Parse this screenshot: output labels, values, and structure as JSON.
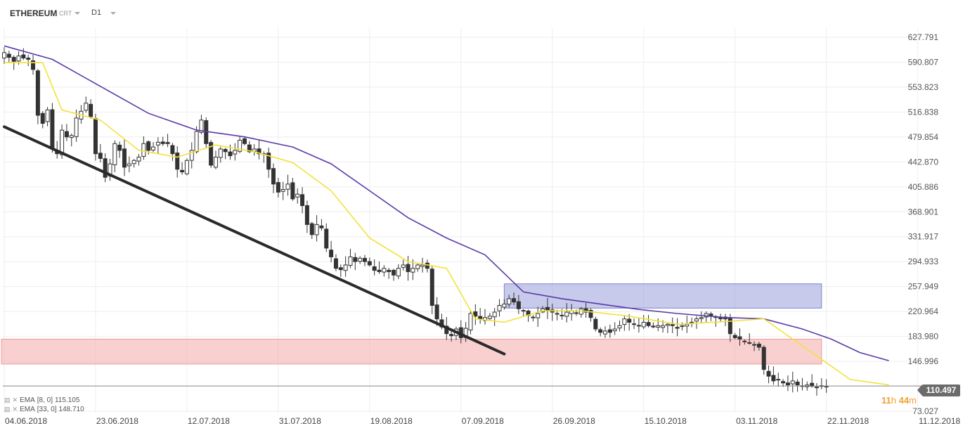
{
  "header": {
    "symbol": "ETHEREUM",
    "chart_type": "CRT",
    "timeframe": "D1"
  },
  "legend": [
    {
      "label": "EMA",
      "params": "[8, 0]",
      "value": "115.105",
      "color": "#f2e23a"
    },
    {
      "label": "EMA",
      "params": "[33, 0]",
      "value": "148.710",
      "color": "#5a3aa8"
    }
  ],
  "current_price": "110.497",
  "countdown": {
    "hours": "11",
    "h": "h",
    "minutes": "44",
    "m": "m"
  },
  "colors": {
    "bull": "#ffffff",
    "bear": "#333333",
    "ema_fast": "#f2e23a",
    "ema_slow": "#5a3aa8",
    "resistance_zone": "#8f96d6",
    "support_zone": "#f4a9a9",
    "trendline": "#2a2a2a"
  },
  "chart_data": {
    "type": "candlestick",
    "y_ticks": [
      "627.791",
      "590.807",
      "553.823",
      "516.838",
      "479.854",
      "442.870",
      "405.886",
      "368.901",
      "331.917",
      "294.933",
      "257.949",
      "220.964",
      "183.980",
      "146.996",
      "110.497",
      "73.027"
    ],
    "y_tick_values": [
      627.791,
      590.807,
      553.823,
      516.838,
      479.854,
      442.87,
      405.886,
      368.901,
      331.917,
      294.933,
      257.949,
      220.964,
      183.98,
      146.996,
      110.497,
      73.027
    ],
    "x_ticks": [
      "04.06.2018",
      "23.06.2018",
      "12.07.2018",
      "31.07.2018",
      "19.08.2018",
      "07.09.2018",
      "26.09.2018",
      "15.10.2018",
      "03.11.2018",
      "22.11.2018",
      "11.12.2018"
    ],
    "x_tick_day_index": [
      0,
      19,
      38,
      57,
      76,
      95,
      114,
      133,
      152,
      171,
      190
    ],
    "ylim": [
      73.027,
      640
    ],
    "xlim_days": [
      0,
      200
    ],
    "closes": [
      605,
      598,
      592,
      600,
      597,
      595,
      580,
      512,
      500,
      520,
      462,
      455,
      490,
      480,
      482,
      508,
      518,
      530,
      510,
      455,
      448,
      420,
      440,
      470,
      460,
      435,
      440,
      445,
      450,
      470,
      460,
      465,
      472,
      470,
      470,
      455,
      432,
      428,
      445,
      460,
      488,
      505,
      470,
      438,
      450,
      462,
      458,
      452,
      460,
      475,
      470,
      458,
      462,
      455,
      455,
      432,
      410,
      398,
      402,
      410,
      388,
      395,
      378,
      350,
      335,
      350,
      345,
      315,
      302,
      285,
      283,
      290,
      302,
      295,
      300,
      295,
      290,
      282,
      280,
      285,
      280,
      275,
      285,
      290,
      280,
      285,
      290,
      290,
      285,
      230,
      210,
      198,
      188,
      185,
      195,
      182,
      196,
      218,
      214,
      210,
      212,
      214,
      220,
      230,
      232,
      240,
      235,
      225,
      222,
      215,
      212,
      218,
      225,
      222,
      220,
      218,
      215,
      220,
      222,
      218,
      225,
      220,
      212,
      195,
      190,
      192,
      190,
      195,
      200,
      210,
      205,
      202,
      200,
      205,
      200,
      198,
      200,
      200,
      202,
      200,
      196,
      200,
      202,
      205,
      210,
      212,
      218,
      215,
      212,
      210,
      210,
      188,
      182,
      180,
      176,
      174,
      172,
      168,
      135,
      125,
      118,
      120,
      115,
      112,
      118,
      112,
      110,
      112,
      110,
      108,
      110,
      110
    ],
    "ema_fast_points": [
      [
        0,
        590
      ],
      [
        8,
        590
      ],
      [
        12,
        520
      ],
      [
        20,
        505
      ],
      [
        28,
        460
      ],
      [
        36,
        450
      ],
      [
        44,
        468
      ],
      [
        52,
        458
      ],
      [
        60,
        442
      ],
      [
        68,
        400
      ],
      [
        76,
        330
      ],
      [
        84,
        295
      ],
      [
        92,
        285
      ],
      [
        98,
        210
      ],
      [
        104,
        205
      ],
      [
        112,
        222
      ],
      [
        120,
        222
      ],
      [
        130,
        214
      ],
      [
        140,
        202
      ],
      [
        150,
        206
      ],
      [
        158,
        210
      ],
      [
        164,
        180
      ],
      [
        170,
        150
      ],
      [
        176,
        120
      ],
      [
        184,
        112
      ]
    ],
    "ema_slow_points": [
      [
        0,
        615
      ],
      [
        10,
        595
      ],
      [
        20,
        555
      ],
      [
        30,
        515
      ],
      [
        40,
        490
      ],
      [
        50,
        480
      ],
      [
        60,
        465
      ],
      [
        68,
        440
      ],
      [
        76,
        400
      ],
      [
        84,
        360
      ],
      [
        92,
        330
      ],
      [
        100,
        305
      ],
      [
        108,
        250
      ],
      [
        116,
        240
      ],
      [
        124,
        232
      ],
      [
        132,
        224
      ],
      [
        140,
        218
      ],
      [
        150,
        212
      ],
      [
        158,
        210
      ],
      [
        166,
        195
      ],
      [
        172,
        180
      ],
      [
        178,
        160
      ],
      [
        184,
        148
      ]
    ],
    "resistance_zone": {
      "day_from": 104,
      "day_to": 170,
      "price_from": 226,
      "price_to": 262
    },
    "support_zone": {
      "day_from": 0,
      "day_to": 170,
      "price_from": 143,
      "price_to": 180
    },
    "trendline": {
      "from": [
        0,
        495
      ],
      "to": [
        104,
        158
      ]
    }
  }
}
